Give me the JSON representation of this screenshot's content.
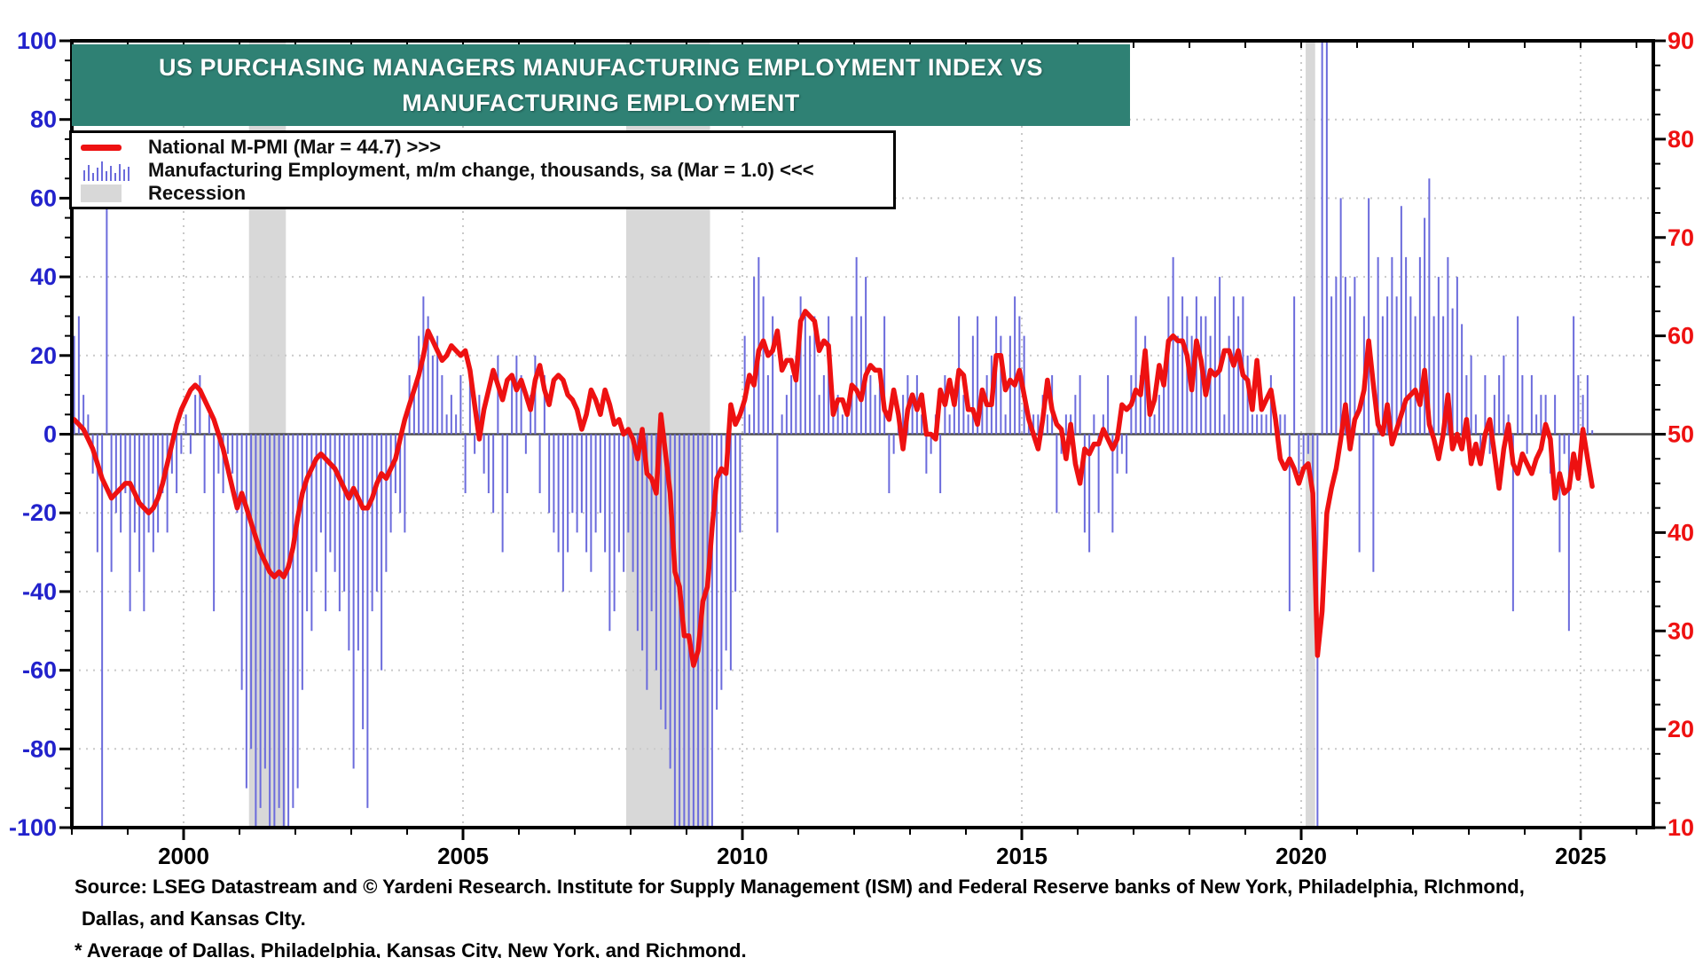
{
  "header": {
    "title_line1": "US PURCHASING MANAGERS MANUFACTURING EMPLOYMENT INDEX VS",
    "title_line2": "MANUFACTURING EMPLOYMENT"
  },
  "legend": {
    "items": [
      {
        "label": "National M-PMI (Mar = 44.7) >>>",
        "marker": "red-line"
      },
      {
        "label": "Manufacturing Employment, m/m change, thousands, sa (Mar = 1.0) <<<",
        "marker": "blue-bars"
      },
      {
        "label": "Recession",
        "marker": "gray-band"
      }
    ]
  },
  "footer": {
    "source_line1": "Source: LSEG Datastream and © Yardeni Research. Institute for Supply Management (ISM) and Federal Reserve banks of New York, Philadelphia, RIchmond,",
    "source_line2": "Dallas, and Kansas CIty.",
    "source_line3": "* Average of Dallas, Philadelphia, Kansas City, New York, and Richmond."
  },
  "colors": {
    "banner": "#2f8174",
    "pmi_line": "#ee1111",
    "bars": "#6b6bdc",
    "recession": "#d8d8d8",
    "grid": "#c9c9c9",
    "zero_line": "#4a4a4a",
    "left_axis_labels": "#2222cc",
    "right_axis_labels": "#ee1111",
    "x_axis_labels": "#000000",
    "border": "#000000"
  },
  "chart_data": {
    "type": "mixed",
    "frequency": "monthly",
    "start": "1998-01",
    "end": "2025-03",
    "x_start_year": 1998.0,
    "x_end_year": 2026.3,
    "axes": {
      "left": {
        "min": -100,
        "max": 100,
        "ticks": [
          100,
          80,
          60,
          40,
          20,
          0,
          -20,
          -40,
          -60,
          -80,
          -100
        ],
        "minor_step": 5,
        "grid_values": [
          80,
          60,
          40,
          20,
          -20,
          -40,
          -60,
          -80
        ]
      },
      "right": {
        "min": 10,
        "max": 90,
        "ticks": [
          90,
          80,
          70,
          60,
          50,
          40,
          30,
          20,
          10
        ],
        "minor_step": 2.5
      },
      "x": {
        "ticks": [
          2000,
          2005,
          2010,
          2015,
          2020,
          2025
        ],
        "minor_step": 1
      }
    },
    "recessions": [
      [
        2001.17,
        2001.83
      ],
      [
        2007.92,
        2009.42
      ],
      [
        2020.08,
        2020.25
      ]
    ],
    "series": [
      {
        "name": "National M-PMI",
        "type": "line",
        "axis": "right",
        "values": [
          51.5,
          51,
          50.5,
          49.5,
          48.5,
          47,
          45.5,
          44.5,
          43.5,
          44,
          44.5,
          45,
          45,
          44,
          43,
          42.5,
          42,
          42.5,
          43.5,
          45,
          47,
          49,
          51,
          52.5,
          53.5,
          54.5,
          55,
          54.5,
          53.5,
          52.5,
          51.5,
          50,
          48.5,
          46.5,
          44.5,
          42.5,
          44,
          42.5,
          41,
          39.5,
          38,
          37,
          36,
          35.5,
          36,
          35.5,
          36.5,
          38.5,
          41.5,
          44,
          45.5,
          46.5,
          47.5,
          48,
          47.5,
          47,
          46.5,
          45.5,
          44.5,
          43.5,
          44.5,
          43.5,
          42.5,
          42.5,
          43.5,
          45,
          46,
          45.5,
          46.5,
          47.5,
          49.5,
          51.5,
          53,
          54.5,
          56,
          58,
          60.5,
          59.5,
          58.5,
          57.5,
          58,
          59,
          58.5,
          58,
          58.5,
          56.5,
          53,
          49.5,
          52.5,
          54.5,
          56.5,
          55,
          53.5,
          55.5,
          56,
          54.5,
          55.5,
          54,
          52.5,
          55.5,
          57,
          54.5,
          53,
          55.5,
          56,
          55.5,
          54,
          53.5,
          52.5,
          50.5,
          52,
          54.5,
          53.5,
          52,
          54.5,
          53,
          51,
          51.5,
          50,
          50.5,
          49.5,
          47.5,
          50.5,
          46,
          45.5,
          44,
          52,
          48,
          44,
          36,
          34.5,
          29.5,
          29.5,
          26.5,
          28,
          33,
          34.5,
          40.5,
          45.5,
          46.5,
          46,
          53,
          51,
          52,
          53.5,
          56,
          55,
          58.5,
          59.5,
          58,
          58.5,
          60.5,
          56.5,
          57.5,
          57.5,
          55.5,
          61.5,
          62.5,
          62,
          61.5,
          58.5,
          59.5,
          59,
          52,
          53.5,
          53.5,
          52,
          55,
          54.5,
          53.5,
          56,
          57,
          56.5,
          56.5,
          52.5,
          51.5,
          54.5,
          52,
          48.5,
          52.5,
          54,
          52.5,
          54,
          50,
          50,
          49.5,
          54.5,
          53,
          55.5,
          53,
          56.5,
          56,
          52.5,
          52.5,
          51,
          54.5,
          53,
          53,
          58,
          58,
          54.5,
          55.5,
          55,
          56.5,
          54,
          51.5,
          50,
          48.5,
          51.5,
          55.5,
          52.5,
          51,
          50.5,
          47.5,
          51,
          47,
          45,
          48.5,
          48,
          49,
          49,
          50.5,
          49.5,
          48.5,
          49.5,
          53,
          52.5,
          53,
          54.5,
          54,
          58.5,
          52,
          53.5,
          57,
          55,
          59.5,
          60,
          59.5,
          59.5,
          58,
          54.5,
          59.5,
          57.5,
          54,
          56.5,
          56,
          56.5,
          58.5,
          58.5,
          57,
          58.5,
          56,
          55.5,
          52.5,
          57.5,
          52.5,
          53.5,
          54.5,
          51.5,
          47.5,
          46.5,
          47.5,
          46.5,
          45,
          46.5,
          47,
          44,
          27.5,
          32,
          42,
          44.5,
          46.5,
          49.5,
          53,
          48.5,
          51.5,
          52.5,
          54.5,
          59.5,
          55,
          51,
          50,
          53,
          49,
          50.5,
          52,
          53.5,
          54,
          54.5,
          53,
          56.5,
          51,
          49.5,
          47.5,
          50,
          54,
          48.5,
          50,
          48.5,
          51.5,
          47,
          49,
          47,
          50,
          51.5,
          48,
          44.5,
          48.5,
          51,
          47,
          46,
          48,
          47,
          46,
          47.5,
          48.5,
          51,
          49.5,
          43.5,
          46,
          44,
          44.5,
          48,
          45.5,
          50.5,
          47.5,
          44.7
        ]
      },
      {
        "name": "Manufacturing Employment, m/m change, thousands, sa",
        "type": "bar",
        "axis": "left",
        "clip": [
          -100,
          100
        ],
        "values": [
          25,
          30,
          10,
          5,
          -10,
          -30,
          -183,
          62,
          -35,
          -20,
          -25,
          -15,
          -45,
          -25,
          -35,
          -45,
          -25,
          -30,
          -25,
          -15,
          -25,
          -10,
          -15,
          -5,
          5,
          -5,
          10,
          15,
          -15,
          5,
          -45,
          -10,
          -15,
          -5,
          -10,
          -20,
          -65,
          -90,
          -80,
          -115,
          -95,
          -85,
          -110,
          -105,
          -95,
          -125,
          -110,
          -95,
          -90,
          -65,
          -45,
          -50,
          -35,
          -25,
          -45,
          -30,
          -35,
          -45,
          -40,
          -55,
          -85,
          -55,
          -75,
          -95,
          -45,
          -40,
          -60,
          -35,
          -25,
          -15,
          -20,
          -25,
          15,
          10,
          25,
          35,
          30,
          20,
          25,
          15,
          5,
          10,
          5,
          15,
          -15,
          15,
          -5,
          10,
          -10,
          -15,
          -20,
          20,
          -30,
          -15,
          15,
          20,
          15,
          -5,
          10,
          20,
          -15,
          15,
          -20,
          -25,
          -30,
          -40,
          -30,
          -20,
          -25,
          -20,
          -30,
          -35,
          -25,
          -20,
          -30,
          -50,
          -45,
          -30,
          -35,
          -25,
          -35,
          -50,
          -55,
          -65,
          -45,
          -60,
          -70,
          -75,
          -85,
          -125,
          -155,
          -185,
          -210,
          -250,
          -220,
          -200,
          -170,
          -135,
          -70,
          -65,
          -55,
          -60,
          -40,
          -25,
          25,
          5,
          40,
          45,
          35,
          15,
          30,
          -25,
          5,
          10,
          15,
          20,
          35,
          30,
          25,
          30,
          10,
          15,
          30,
          5,
          10,
          5,
          5,
          30,
          45,
          30,
          40,
          15,
          10,
          15,
          30,
          -15,
          -5,
          5,
          10,
          15,
          10,
          15,
          5,
          -10,
          -5,
          5,
          -15,
          15,
          5,
          10,
          30,
          10,
          5,
          25,
          30,
          10,
          15,
          20,
          30,
          25,
          5,
          25,
          35,
          30,
          25,
          5,
          5,
          5,
          10,
          5,
          15,
          -20,
          -5,
          5,
          5,
          10,
          15,
          -25,
          -30,
          5,
          -20,
          5,
          15,
          -25,
          -10,
          -5,
          -10,
          15,
          30,
          15,
          25,
          10,
          5,
          10,
          15,
          35,
          45,
          25,
          35,
          30,
          25,
          35,
          30,
          30,
          25,
          35,
          40,
          5,
          25,
          35,
          30,
          35,
          20,
          5,
          5,
          5,
          5,
          15,
          5,
          5,
          5,
          -45,
          35,
          -10,
          -10,
          -5,
          -20,
          -1330,
          255,
          365,
          35,
          40,
          60,
          40,
          35,
          40,
          -30,
          30,
          60,
          -35,
          45,
          30,
          35,
          45,
          35,
          58,
          45,
          35,
          30,
          45,
          55,
          65,
          30,
          40,
          30,
          45,
          32,
          40,
          28,
          15,
          20,
          5,
          -5,
          15,
          -5,
          10,
          15,
          20,
          5,
          -45,
          30,
          15,
          -5,
          15,
          5,
          10,
          10,
          -10,
          10,
          -30,
          -5,
          -50,
          30,
          15,
          10,
          15,
          1
        ]
      }
    ]
  }
}
